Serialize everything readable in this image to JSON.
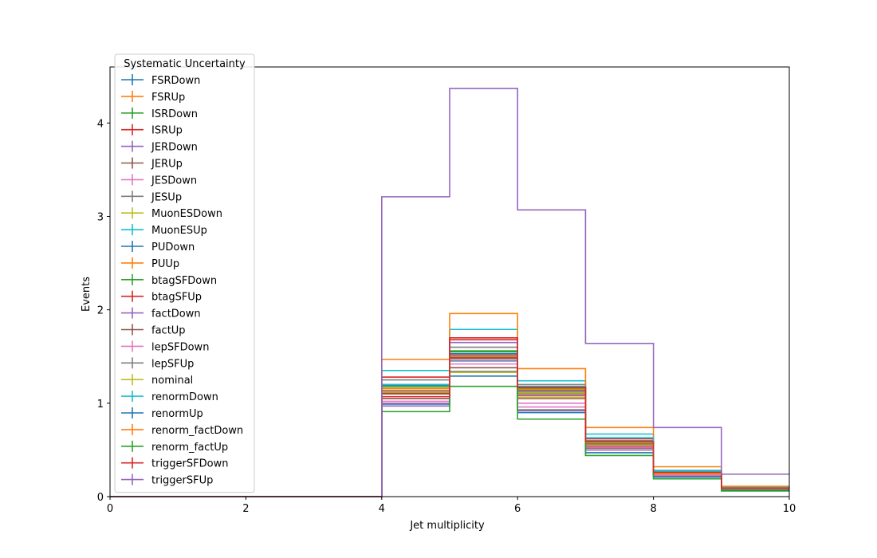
{
  "chart_data": {
    "type": "line",
    "drawstyle": "steps-post",
    "xlabel": "Jet multiplicity",
    "ylabel": "Events",
    "xlim": [
      0,
      10
    ],
    "ylim": [
      0,
      4.6
    ],
    "xticks": [
      "0",
      "2",
      "4",
      "6",
      "8",
      "10"
    ],
    "yticks": [
      "0",
      "1",
      "2",
      "3",
      "4"
    ],
    "grid": false,
    "legend": {
      "title": "Systematic Uncertainty",
      "placement": "upper-left"
    },
    "bin_edges": [
      0,
      1,
      2,
      3,
      4,
      5,
      6,
      7,
      8,
      9,
      10
    ],
    "series": [
      {
        "name": "FSRDown",
        "color": "#1f77b4",
        "values": [
          0,
          0,
          0,
          0,
          1.12,
          1.5,
          1.1,
          0.55,
          0.24,
          0.08
        ]
      },
      {
        "name": "FSRUp",
        "color": "#ff7f0e",
        "values": [
          0,
          0,
          0,
          0,
          1.14,
          1.52,
          1.12,
          0.56,
          0.25,
          0.09
        ]
      },
      {
        "name": "ISRDown",
        "color": "#2ca02c",
        "values": [
          0,
          0,
          0,
          0,
          1.16,
          1.55,
          1.14,
          0.57,
          0.25,
          0.09
        ]
      },
      {
        "name": "ISRUp",
        "color": "#d62728",
        "values": [
          0,
          0,
          0,
          0,
          1.1,
          1.48,
          1.08,
          0.54,
          0.24,
          0.08
        ]
      },
      {
        "name": "JERDown",
        "color": "#9467bd",
        "values": [
          0,
          0,
          0,
          0,
          1.13,
          1.51,
          1.13,
          0.56,
          0.25,
          0.09
        ]
      },
      {
        "name": "JERUp",
        "color": "#8c564b",
        "values": [
          0,
          0,
          0,
          0,
          1.11,
          1.49,
          1.11,
          0.55,
          0.24,
          0.08
        ]
      },
      {
        "name": "JESDown",
        "color": "#e377c2",
        "values": [
          0,
          0,
          0,
          0,
          1.02,
          1.42,
          0.96,
          0.5,
          0.22,
          0.07
        ]
      },
      {
        "name": "JESUp",
        "color": "#7f7f7f",
        "values": [
          0,
          0,
          0,
          0,
          1.25,
          1.6,
          1.2,
          0.62,
          0.28,
          0.1
        ]
      },
      {
        "name": "MuonESDown",
        "color": "#bcbd22",
        "values": [
          0,
          0,
          0,
          0,
          1.12,
          1.5,
          1.11,
          0.55,
          0.24,
          0.08
        ]
      },
      {
        "name": "MuonESUp",
        "color": "#17becf",
        "values": [
          0,
          0,
          0,
          0,
          1.35,
          1.79,
          1.24,
          0.67,
          0.28,
          0.1
        ]
      },
      {
        "name": "PUDown",
        "color": "#1f77b4",
        "values": [
          0,
          0,
          0,
          0,
          1.19,
          1.53,
          1.16,
          0.58,
          0.26,
          0.09
        ]
      },
      {
        "name": "PUUp",
        "color": "#ff7f0e",
        "values": [
          0,
          0,
          0,
          0,
          1.47,
          1.96,
          1.37,
          0.74,
          0.32,
          0.11
        ]
      },
      {
        "name": "btagSFDown",
        "color": "#2ca02c",
        "values": [
          0,
          0,
          0,
          0,
          1.18,
          1.56,
          1.16,
          0.58,
          0.26,
          0.09
        ]
      },
      {
        "name": "btagSFUp",
        "color": "#d62728",
        "values": [
          0,
          0,
          0,
          0,
          1.28,
          1.7,
          1.17,
          0.62,
          0.27,
          0.09
        ]
      },
      {
        "name": "factDown",
        "color": "#9467bd",
        "values": [
          0,
          0,
          0,
          0,
          0.97,
          1.65,
          0.92,
          0.5,
          0.22,
          0.07
        ]
      },
      {
        "name": "factUp",
        "color": "#8c564b",
        "values": [
          0,
          0,
          0,
          0,
          1.05,
          1.38,
          1.05,
          0.52,
          0.23,
          0.08
        ]
      },
      {
        "name": "lepSFDown",
        "color": "#e377c2",
        "values": [
          0,
          0,
          0,
          0,
          1.0,
          1.45,
          1.0,
          0.53,
          0.23,
          0.08
        ]
      },
      {
        "name": "lepSFUp",
        "color": "#7f7f7f",
        "values": [
          0,
          0,
          0,
          0,
          1.2,
          1.34,
          0.93,
          0.6,
          0.27,
          0.09
        ]
      },
      {
        "name": "nominal",
        "color": "#bcbd22",
        "values": [
          0,
          0,
          0,
          0,
          1.12,
          1.33,
          1.06,
          0.58,
          0.25,
          0.08
        ]
      },
      {
        "name": "renormDown",
        "color": "#17becf",
        "values": [
          0,
          0,
          0,
          0,
          1.2,
          1.46,
          1.18,
          0.63,
          0.27,
          0.09
        ]
      },
      {
        "name": "renormUp",
        "color": "#1f77b4",
        "values": [
          0,
          0,
          0,
          0,
          0.99,
          1.29,
          0.9,
          0.47,
          0.21,
          0.07
        ]
      },
      {
        "name": "renorm_factDown",
        "color": "#ff7f0e",
        "values": [
          0,
          0,
          0,
          0,
          1.16,
          1.5,
          1.15,
          0.58,
          0.25,
          0.09
        ]
      },
      {
        "name": "renorm_factUp",
        "color": "#2ca02c",
        "values": [
          0,
          0,
          0,
          0,
          0.91,
          1.18,
          0.83,
          0.44,
          0.19,
          0.06
        ]
      },
      {
        "name": "triggerSFDown",
        "color": "#d62728",
        "values": [
          0,
          0,
          0,
          0,
          1.07,
          1.68,
          1.17,
          0.59,
          0.26,
          0.09
        ]
      },
      {
        "name": "triggerSFUp",
        "color": "#9467bd",
        "values": [
          0,
          0,
          0,
          0,
          3.21,
          4.37,
          3.07,
          1.64,
          0.74,
          0.24
        ]
      }
    ]
  }
}
